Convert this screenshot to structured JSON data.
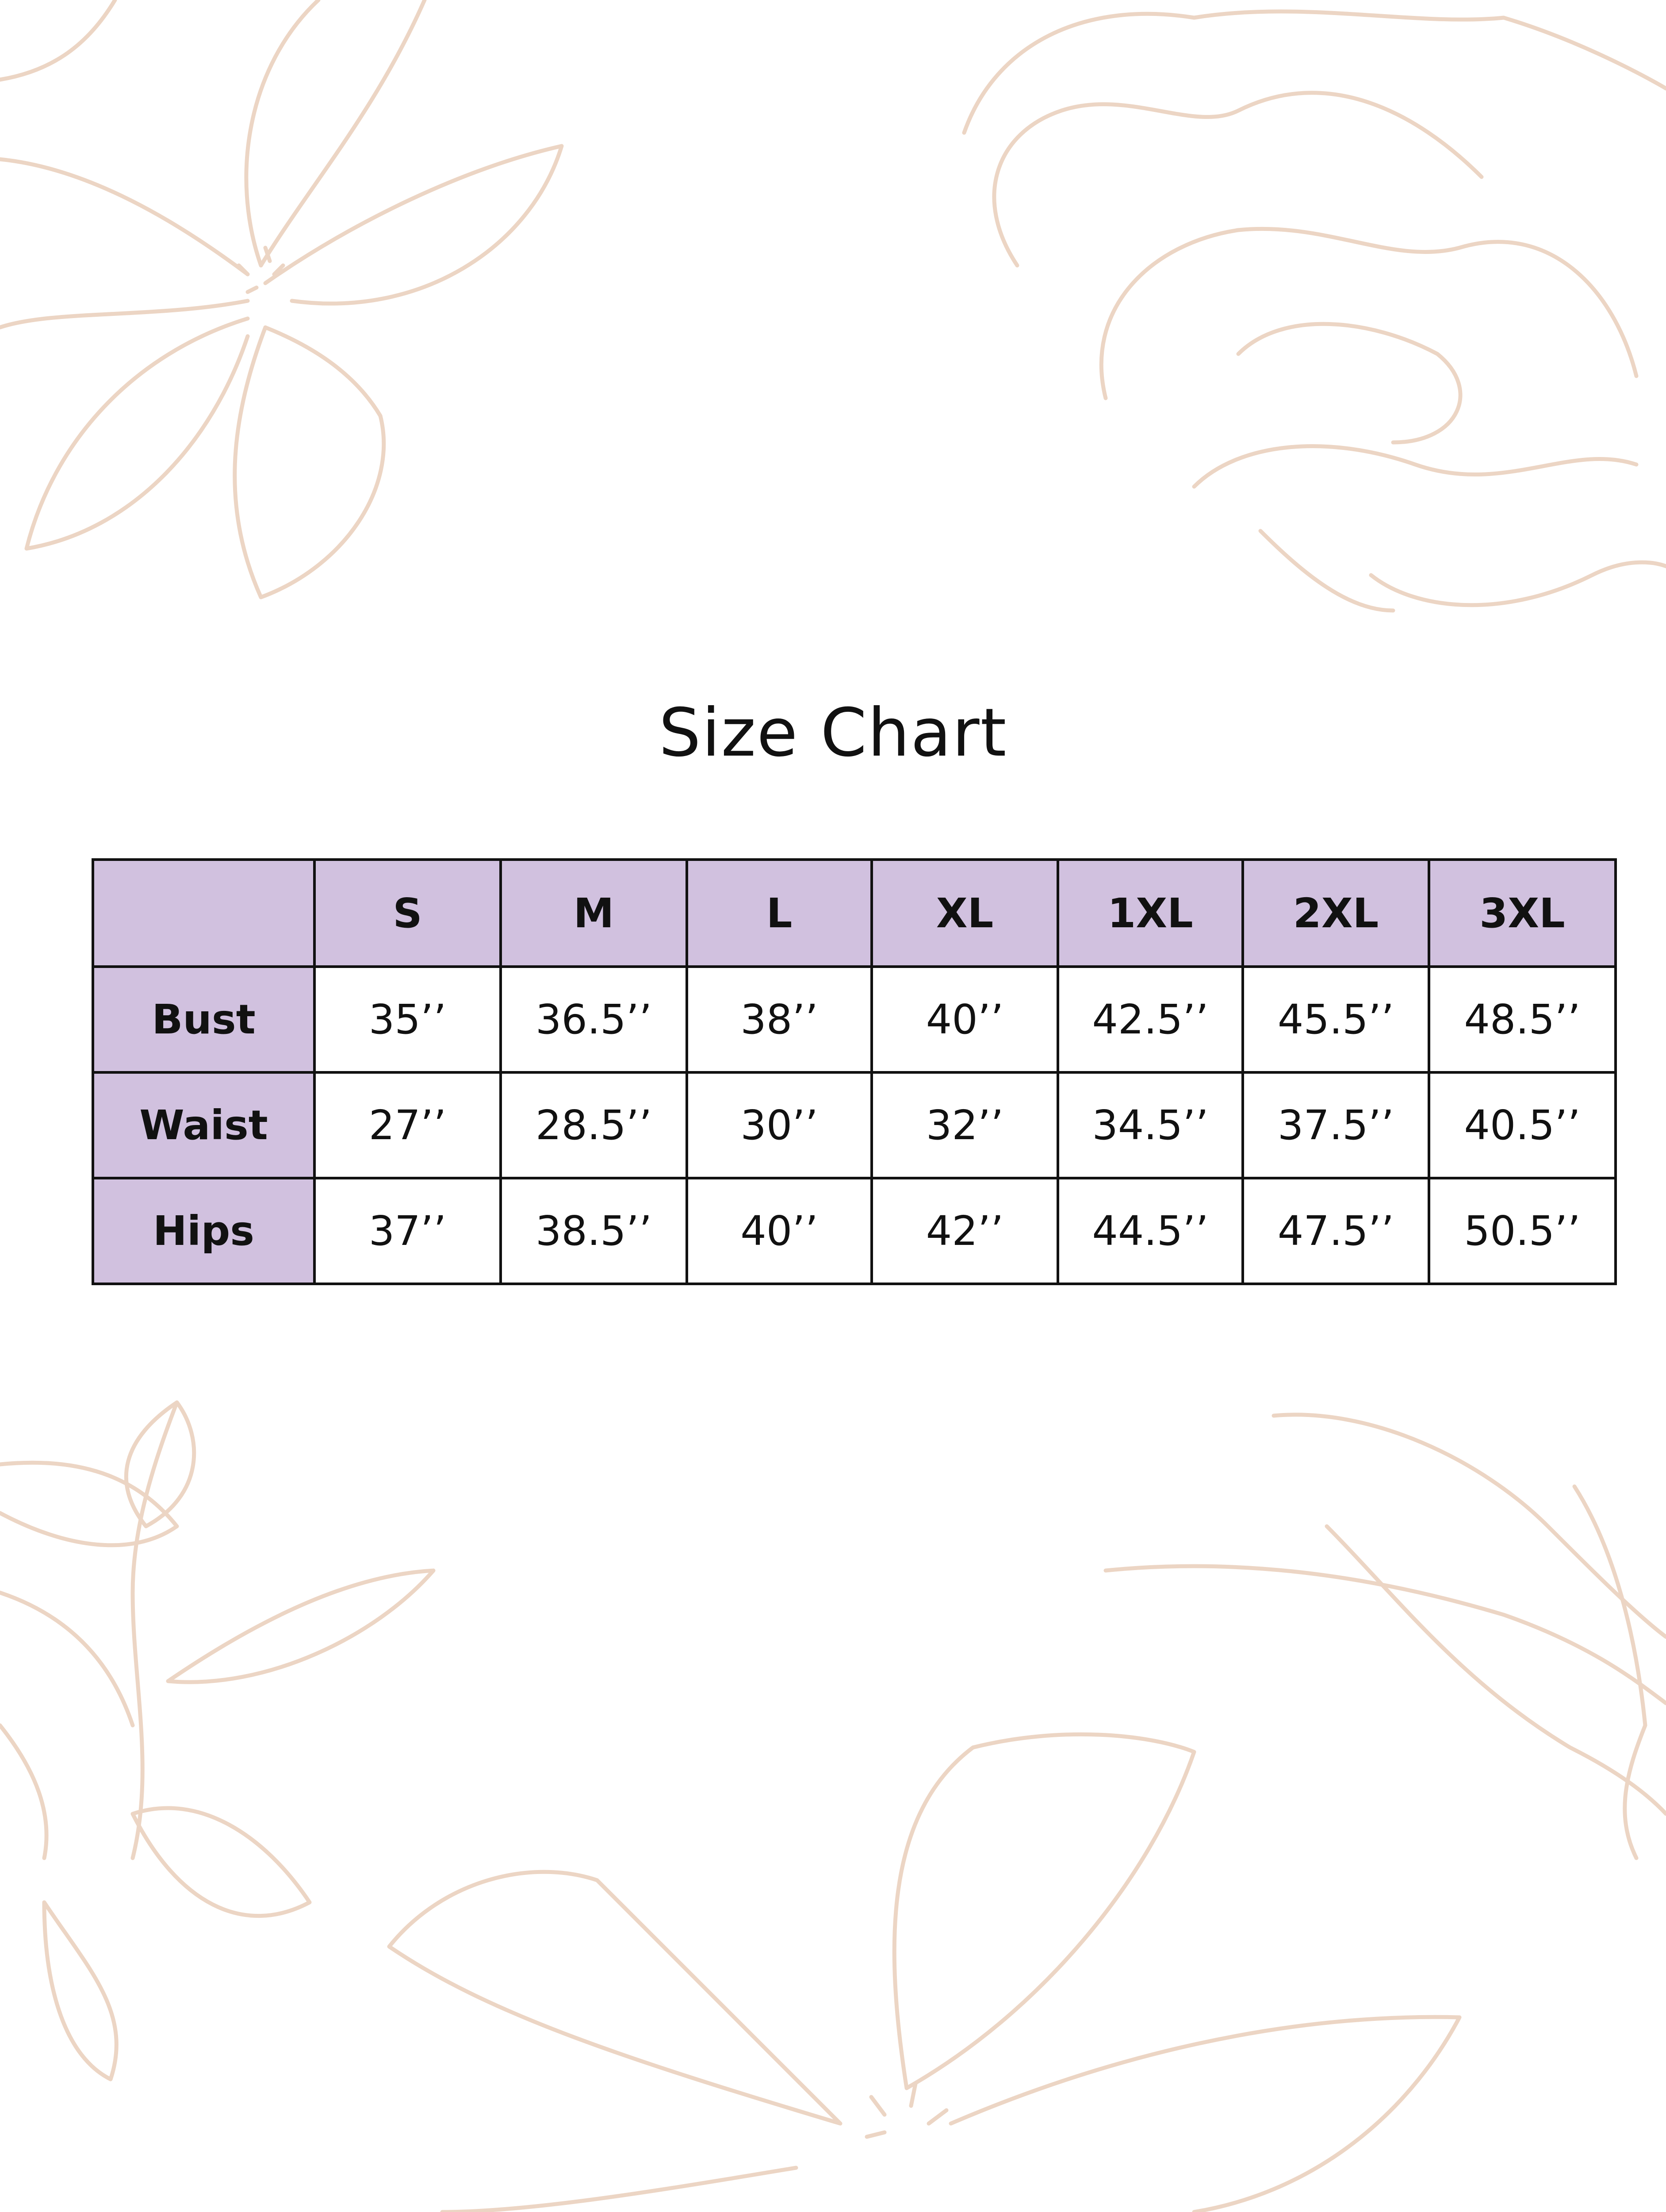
{
  "title": "Size Chart",
  "colors": {
    "header_bg": "#d1c1df",
    "border": "#111111",
    "decoration": "#ecd5c4"
  },
  "decoration": "floral-line-art",
  "table": {
    "columns": [
      "",
      "S",
      "M",
      "L",
      "XL",
      "1XL",
      "2XL",
      "3XL"
    ],
    "rows": [
      {
        "label": "Bust",
        "values": [
          "35’’",
          "36.5’’",
          "38’’",
          "40’’",
          "42.5’’",
          "45.5’’",
          "48.5’’"
        ]
      },
      {
        "label": "Waist",
        "values": [
          "27’’",
          "28.5’’",
          "30’’",
          "32’’",
          "34.5’’",
          "37.5’’",
          "40.5’’"
        ]
      },
      {
        "label": "Hips",
        "values": [
          "37’’",
          "38.5’’",
          "40’’",
          "42’’",
          "44.5’’",
          "47.5’’",
          "50.5’’"
        ]
      }
    ]
  }
}
